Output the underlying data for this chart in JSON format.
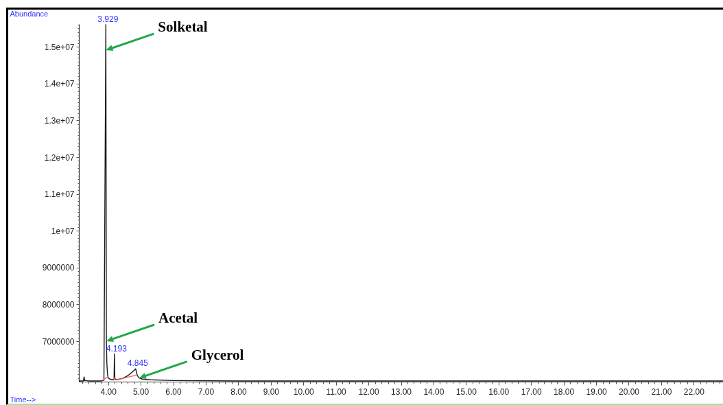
{
  "chart_data": {
    "type": "line",
    "xlabel": "Time-->",
    "ylabel": "Abundance",
    "xlim": [
      3.1,
      22.9
    ],
    "ylim": [
      5900000,
      15620000
    ],
    "xticks": [
      {
        "value": 3.2,
        "label": null
      },
      {
        "value": 3.4,
        "label": null
      },
      {
        "value": 3.6,
        "label": null
      },
      {
        "value": 3.8,
        "label": null
      },
      {
        "value": 4,
        "label": "4.00"
      },
      {
        "value": 4.2,
        "label": null
      },
      {
        "value": 4.4,
        "label": null
      },
      {
        "value": 4.6,
        "label": null
      },
      {
        "value": 4.8,
        "label": null
      },
      {
        "value": 5,
        "label": "5.00"
      },
      {
        "value": 5.2,
        "label": null
      },
      {
        "value": 5.4,
        "label": null
      },
      {
        "value": 5.6,
        "label": null
      },
      {
        "value": 5.8,
        "label": null
      },
      {
        "value": 6,
        "label": "6.00"
      },
      {
        "value": 6.2,
        "label": null
      },
      {
        "value": 6.4,
        "label": null
      },
      {
        "value": 6.6,
        "label": null
      },
      {
        "value": 6.8,
        "label": null
      },
      {
        "value": 7,
        "label": "7.00"
      },
      {
        "value": 7.2,
        "label": null
      },
      {
        "value": 7.4,
        "label": null
      },
      {
        "value": 7.6,
        "label": null
      },
      {
        "value": 7.8,
        "label": null
      },
      {
        "value": 8,
        "label": "8.00"
      },
      {
        "value": 8.2,
        "label": null
      },
      {
        "value": 8.4,
        "label": null
      },
      {
        "value": 8.6,
        "label": null
      },
      {
        "value": 8.8,
        "label": null
      },
      {
        "value": 9,
        "label": "9.00"
      },
      {
        "value": 9.2,
        "label": null
      },
      {
        "value": 9.4,
        "label": null
      },
      {
        "value": 9.6,
        "label": null
      },
      {
        "value": 9.8,
        "label": null
      },
      {
        "value": 10,
        "label": "10.00"
      },
      {
        "value": 10.2,
        "label": null
      },
      {
        "value": 10.4,
        "label": null
      },
      {
        "value": 10.6,
        "label": null
      },
      {
        "value": 10.8,
        "label": null
      },
      {
        "value": 11,
        "label": "11.00"
      },
      {
        "value": 11.2,
        "label": null
      },
      {
        "value": 11.4,
        "label": null
      },
      {
        "value": 11.6,
        "label": null
      },
      {
        "value": 11.8,
        "label": null
      },
      {
        "value": 12,
        "label": "12.00"
      },
      {
        "value": 12.2,
        "label": null
      },
      {
        "value": 12.4,
        "label": null
      },
      {
        "value": 12.6,
        "label": null
      },
      {
        "value": 12.8,
        "label": null
      },
      {
        "value": 13,
        "label": "13.00"
      },
      {
        "value": 13.2,
        "label": null
      },
      {
        "value": 13.4,
        "label": null
      },
      {
        "value": 13.6,
        "label": null
      },
      {
        "value": 13.8,
        "label": null
      },
      {
        "value": 14,
        "label": "14.00"
      },
      {
        "value": 14.2,
        "label": null
      },
      {
        "value": 14.4,
        "label": null
      },
      {
        "value": 14.6,
        "label": null
      },
      {
        "value": 14.8,
        "label": null
      },
      {
        "value": 15,
        "label": "15.00"
      },
      {
        "value": 15.2,
        "label": null
      },
      {
        "value": 15.4,
        "label": null
      },
      {
        "value": 15.6,
        "label": null
      },
      {
        "value": 15.8,
        "label": null
      },
      {
        "value": 16,
        "label": "16.00"
      },
      {
        "value": 16.2,
        "label": null
      },
      {
        "value": 16.4,
        "label": null
      },
      {
        "value": 16.6,
        "label": null
      },
      {
        "value": 16.8,
        "label": null
      },
      {
        "value": 17,
        "label": "17.00"
      },
      {
        "value": 17.2,
        "label": null
      },
      {
        "value": 17.4,
        "label": null
      },
      {
        "value": 17.6,
        "label": null
      },
      {
        "value": 17.8,
        "label": null
      },
      {
        "value": 18,
        "label": "18.00"
      },
      {
        "value": 18.2,
        "label": null
      },
      {
        "value": 18.4,
        "label": null
      },
      {
        "value": 18.6,
        "label": null
      },
      {
        "value": 18.8,
        "label": null
      },
      {
        "value": 19,
        "label": "19.00"
      },
      {
        "value": 19.2,
        "label": null
      },
      {
        "value": 19.4,
        "label": null
      },
      {
        "value": 19.6,
        "label": null
      },
      {
        "value": 19.8,
        "label": null
      },
      {
        "value": 20,
        "label": "20.00"
      },
      {
        "value": 20.2,
        "label": null
      },
      {
        "value": 20.4,
        "label": null
      },
      {
        "value": 20.6,
        "label": null
      },
      {
        "value": 20.8,
        "label": null
      },
      {
        "value": 21,
        "label": "21.00"
      },
      {
        "value": 21.2,
        "label": null
      },
      {
        "value": 21.4,
        "label": null
      },
      {
        "value": 21.6,
        "label": null
      },
      {
        "value": 21.8,
        "label": null
      },
      {
        "value": 22,
        "label": "22.00"
      },
      {
        "value": 22.2,
        "label": null
      },
      {
        "value": 22.4,
        "label": null
      },
      {
        "value": 22.6,
        "label": null
      },
      {
        "value": 22.8,
        "label": null
      }
    ],
    "yticks": [
      {
        "value": 6000000,
        "label": null
      },
      {
        "value": 6100000,
        "label": null
      },
      {
        "value": 6200000,
        "label": null
      },
      {
        "value": 6300000,
        "label": null
      },
      {
        "value": 6400000,
        "label": null
      },
      {
        "value": 6500000,
        "label": null
      },
      {
        "value": 6600000,
        "label": null
      },
      {
        "value": 6700000,
        "label": null
      },
      {
        "value": 6800000,
        "label": null
      },
      {
        "value": 6900000,
        "label": null
      },
      7000000,
      {
        "value": 7100000,
        "label": null
      },
      {
        "value": 7200000,
        "label": null
      },
      {
        "value": 7300000,
        "label": null
      },
      {
        "value": 7400000,
        "label": null
      },
      {
        "value": 7500000,
        "label": null
      },
      {
        "value": 7600000,
        "label": null
      },
      {
        "value": 7700000,
        "label": null
      },
      {
        "value": 7800000,
        "label": null
      },
      {
        "value": 7900000,
        "label": null
      },
      8000000,
      {
        "value": 8100000,
        "label": null
      },
      {
        "value": 8200000,
        "label": null
      },
      {
        "value": 8300000,
        "label": null
      },
      {
        "value": 8400000,
        "label": null
      },
      {
        "value": 8500000,
        "label": null
      },
      {
        "value": 8600000,
        "label": null
      },
      {
        "value": 8700000,
        "label": null
      },
      {
        "value": 8800000,
        "label": null
      },
      {
        "value": 8900000,
        "label": null
      },
      9000000,
      {
        "value": 9100000,
        "label": null
      },
      {
        "value": 9200000,
        "label": null
      },
      {
        "value": 9300000,
        "label": null
      },
      {
        "value": 9400000,
        "label": null
      },
      {
        "value": 9500000,
        "label": null
      },
      {
        "value": 9600000,
        "label": null
      },
      {
        "value": 9700000,
        "label": null
      },
      {
        "value": 9800000,
        "label": null
      },
      {
        "value": 9900000,
        "label": null
      },
      {
        "value": 10000000,
        "label": "1e+07"
      },
      {
        "value": 10100000,
        "label": null
      },
      {
        "value": 10200000,
        "label": null
      },
      {
        "value": 10300000,
        "label": null
      },
      {
        "value": 10400000,
        "label": null
      },
      {
        "value": 10500000,
        "label": null
      },
      {
        "value": 10600000,
        "label": null
      },
      {
        "value": 10700000,
        "label": null
      },
      {
        "value": 10800000,
        "label": null
      },
      {
        "value": 10900000,
        "label": null
      },
      {
        "value": 11000000,
        "label": "1.1e+07"
      },
      {
        "value": 11100000,
        "label": null
      },
      {
        "value": 11200000,
        "label": null
      },
      {
        "value": 11300000,
        "label": null
      },
      {
        "value": 11400000,
        "label": null
      },
      {
        "value": 11500000,
        "label": null
      },
      {
        "value": 11600000,
        "label": null
      },
      {
        "value": 11700000,
        "label": null
      },
      {
        "value": 11800000,
        "label": null
      },
      {
        "value": 11900000,
        "label": null
      },
      {
        "value": 12000000,
        "label": "1.2e+07"
      },
      {
        "value": 12100000,
        "label": null
      },
      {
        "value": 12200000,
        "label": null
      },
      {
        "value": 12300000,
        "label": null
      },
      {
        "value": 12400000,
        "label": null
      },
      {
        "value": 12500000,
        "label": null
      },
      {
        "value": 12600000,
        "label": null
      },
      {
        "value": 12700000,
        "label": null
      },
      {
        "value": 12800000,
        "label": null
      },
      {
        "value": 12900000,
        "label": null
      },
      {
        "value": 13000000,
        "label": "1.3e+07"
      },
      {
        "value": 13100000,
        "label": null
      },
      {
        "value": 13200000,
        "label": null
      },
      {
        "value": 13300000,
        "label": null
      },
      {
        "value": 13400000,
        "label": null
      },
      {
        "value": 13500000,
        "label": null
      },
      {
        "value": 13600000,
        "label": null
      },
      {
        "value": 13700000,
        "label": null
      },
      {
        "value": 13800000,
        "label": null
      },
      {
        "value": 13900000,
        "label": null
      },
      {
        "value": 14000000,
        "label": "1.4e+07"
      },
      {
        "value": 14100000,
        "label": null
      },
      {
        "value": 14200000,
        "label": null
      },
      {
        "value": 14300000,
        "label": null
      },
      {
        "value": 14400000,
        "label": null
      },
      {
        "value": 14500000,
        "label": null
      },
      {
        "value": 14600000,
        "label": null
      },
      {
        "value": 14700000,
        "label": null
      },
      {
        "value": 14800000,
        "label": null
      },
      {
        "value": 14900000,
        "label": null
      },
      {
        "value": 15000000,
        "label": "1.5e+07"
      },
      {
        "value": 15100000,
        "label": null
      },
      {
        "value": 15200000,
        "label": null
      },
      {
        "value": 15300000,
        "label": null
      },
      {
        "value": 15400000,
        "label": null
      },
      {
        "value": 15500000,
        "label": null
      },
      {
        "value": 15600000,
        "label": null
      }
    ],
    "series": [
      {
        "color": "#1a1a1a",
        "x": [
          3.1,
          3.24,
          3.26,
          3.28,
          3.4,
          3.8,
          3.87,
          3.929,
          3.945,
          3.96,
          3.98,
          4.0,
          4.08,
          4.18,
          4.193,
          4.205,
          4.25,
          4.3,
          4.45,
          4.6,
          4.7,
          4.8,
          4.845,
          4.87,
          4.9,
          4.95,
          5.05,
          5.3,
          6.0,
          8.0,
          22.9
        ],
        "values": [
          5920000,
          5920000,
          6030000,
          5930000,
          5920000,
          5920000,
          5940000,
          15600000,
          7000000,
          6400000,
          6100000,
          6000000,
          5960000,
          5950000,
          6650000,
          5980000,
          5960000,
          5960000,
          5990000,
          6060000,
          6130000,
          6210000,
          6250000,
          6160000,
          6060000,
          6000000,
          5970000,
          5950000,
          5930000,
          5920000,
          5920000
        ]
      },
      {
        "color": "#ff5a5a",
        "x": [
          3.84,
          3.98,
          4.08,
          4.17,
          4.21,
          4.23,
          4.25,
          4.88
        ],
        "values": [
          5940000,
          6030000,
          null,
          5940000,
          6020000,
          null,
          5950000,
          6080000
        ]
      }
    ],
    "annotations": [
      {
        "text": "Solketal",
        "x": 3.93,
        "y": 14910000
      },
      {
        "text": "Acetal",
        "x": 3.945,
        "y": 7000000
      },
      {
        "text": "Glycerol",
        "x": 4.95,
        "y": 6000000
      },
      {
        "text": "3.929",
        "x": 3.929,
        "y": 15600000
      },
      {
        "text": "4.193",
        "x": 4.193,
        "y": 6650000
      },
      {
        "text": "4.845",
        "x": 4.845,
        "y": 6250000
      }
    ]
  }
}
